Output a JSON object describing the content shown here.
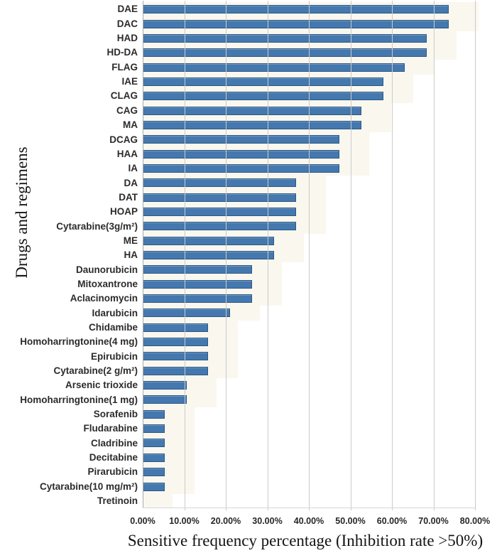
{
  "figure": {
    "background_color": "#FFFFFF",
    "text_color": "#262626"
  },
  "chart_data": {
    "type": "bar",
    "orientation": "horizontal",
    "title": "",
    "xlabel": "Sensitive frequency percentage (Inhibition rate >50%)",
    "ylabel": "Drugs and regimens",
    "xlim": [
      0,
      80
    ],
    "x_ticks": [
      "0.00%",
      "10.00%",
      "20.00%",
      "30.00%",
      "40.00%",
      "50.00%",
      "60.00%",
      "70.00%",
      "80.00%"
    ],
    "x_tick_values": [
      0,
      10,
      20,
      30,
      40,
      50,
      60,
      70,
      80
    ],
    "grid": "vertical-only",
    "legend_position": "none",
    "bar_color": "#4478AE",
    "bar_border_color": "#2B5884",
    "gridline_color": "#CBCBCB",
    "unit": "%",
    "categories": [
      "DAE",
      "DAC",
      "HAD",
      "HD-DA",
      "FLAG",
      "IAE",
      "CLAG",
      "CAG",
      "MA",
      "DCAG",
      "HAA",
      "IA",
      "DA",
      "DAT",
      "HOAP",
      "Cytarabine(3g/m²)",
      "ME",
      "HA",
      "Daunorubicin",
      "Mitoxantrone",
      "Aclacinomycin",
      "Idarubicin",
      "Chidamibe",
      "Homoharringtonine(4 mg)",
      "Epirubicin",
      "Cytarabine(2 g/m²)",
      "Arsenic trioxide",
      "Homoharringtonine(1 mg)",
      "Sorafenib",
      "Fludarabine",
      "Cladribine",
      "Decitabine",
      "Pirarubicin",
      "Cytarabine(10 mg/m²)",
      "Tretinoin"
    ],
    "values": [
      73.68,
      73.68,
      68.42,
      68.42,
      63.16,
      57.89,
      57.89,
      52.63,
      52.63,
      47.37,
      47.37,
      47.37,
      36.84,
      36.84,
      36.84,
      36.84,
      31.58,
      31.58,
      26.32,
      26.32,
      26.32,
      21.05,
      15.79,
      15.79,
      15.79,
      15.79,
      10.53,
      10.53,
      5.26,
      5.26,
      5.26,
      5.26,
      5.26,
      5.26,
      0
    ]
  }
}
